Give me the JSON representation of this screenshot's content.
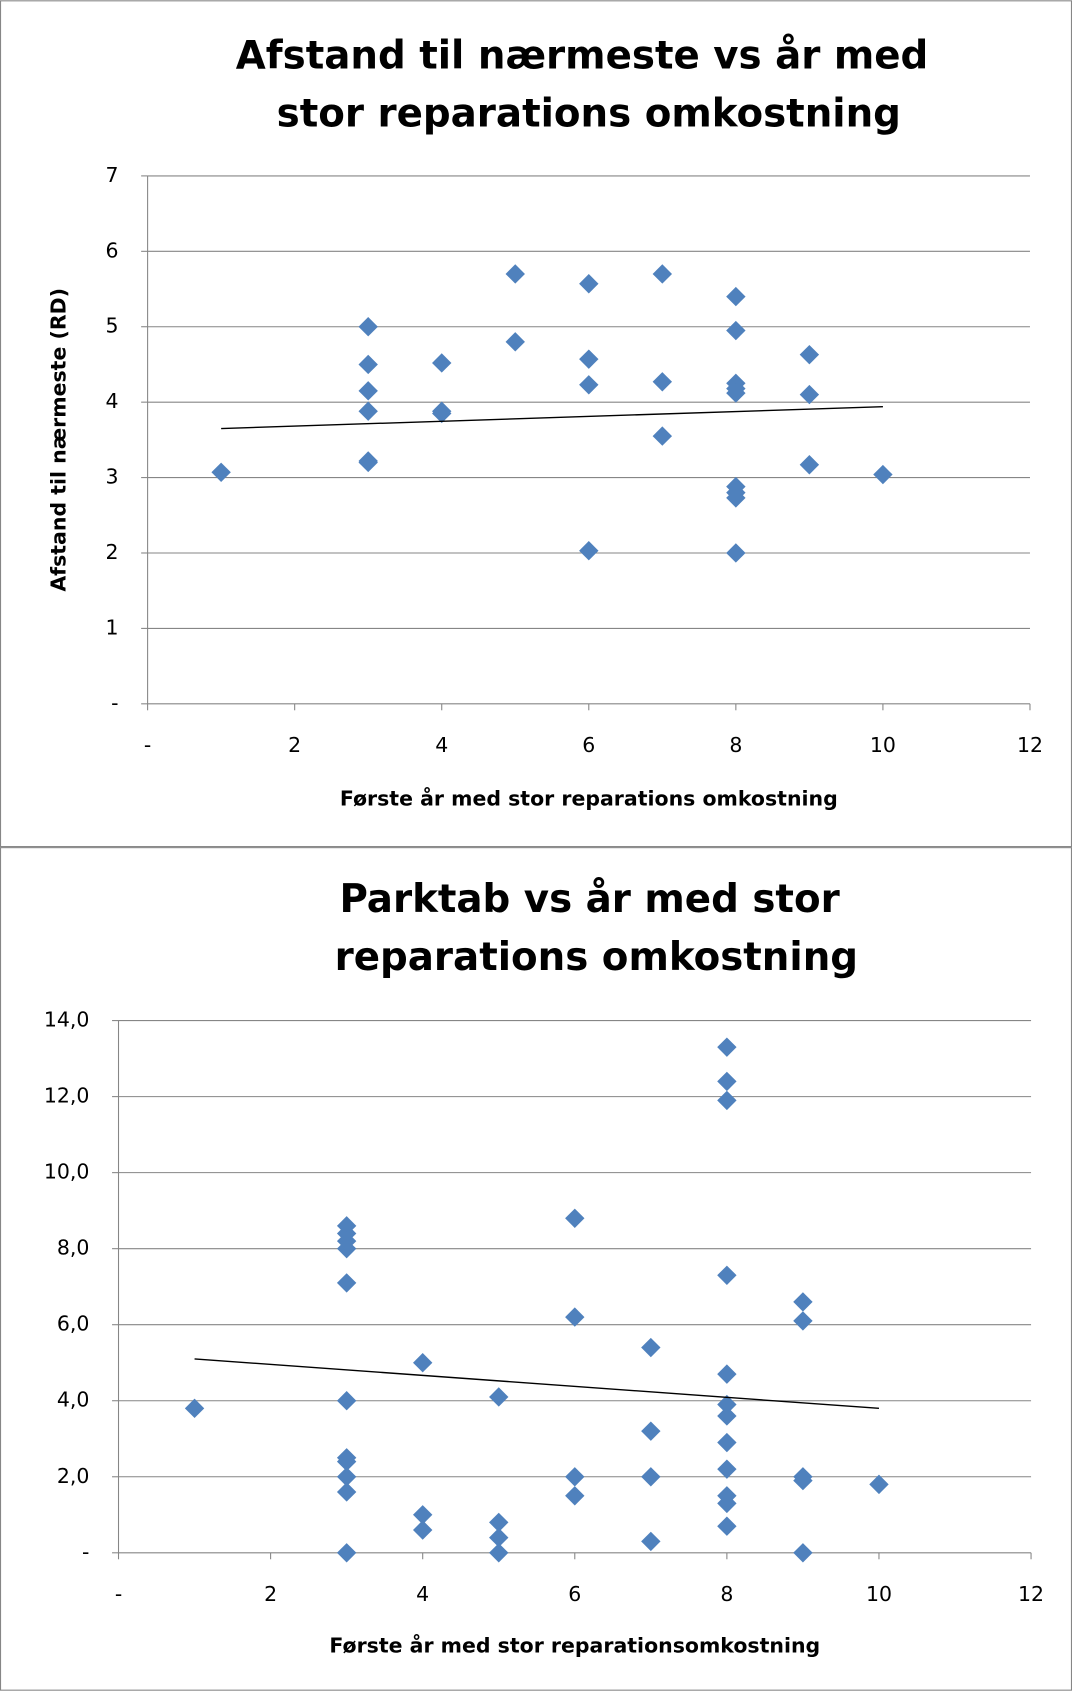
{
  "chart_data": [
    {
      "type": "scatter",
      "title": "Afstand til nærmeste vs år med stor reparations omkostning",
      "x_label": "Første år med stor reparations omkostning",
      "y_label": "Afstand til nærmeste (RD)",
      "xlim": [
        0,
        12
      ],
      "xticks": [
        {
          "value": 0,
          "label": "-"
        },
        2,
        4,
        6,
        8,
        10,
        12
      ],
      "ylim": [
        0,
        7
      ],
      "yticks": [
        {
          "value": 0,
          "label": "-"
        },
        1,
        2,
        3,
        4,
        5,
        6,
        7
      ],
      "grid": true,
      "series": [
        {
          "color": "#4f81bd",
          "x": [
            1,
            3,
            3,
            3,
            3,
            3,
            3,
            4,
            4,
            4,
            5,
            5,
            6,
            6,
            6,
            6,
            7,
            7,
            7,
            8,
            8,
            8,
            8,
            8,
            8,
            8,
            8,
            8,
            9,
            9,
            9,
            10
          ],
          "y": [
            3.07,
            5.0,
            4.5,
            4.15,
            3.88,
            3.22,
            3.2,
            4.52,
            3.88,
            3.85,
            5.7,
            4.8,
            5.57,
            4.57,
            4.23,
            2.03,
            5.7,
            4.27,
            3.55,
            5.4,
            4.95,
            4.25,
            4.18,
            4.12,
            2.88,
            2.8,
            2.73,
            2.0,
            4.63,
            4.1,
            3.17,
            3.04
          ]
        }
      ],
      "trendline": {
        "x": [
          1,
          10
        ],
        "y": [
          3.65,
          3.94
        ]
      }
    },
    {
      "type": "scatter",
      "title": "Parktab vs år med stor reparations omkostning",
      "x_label": "Første år med stor reparationsomkostning",
      "xlim": [
        0,
        12
      ],
      "xticks": [
        {
          "value": 0,
          "label": "-"
        },
        2,
        4,
        6,
        8,
        10,
        12
      ],
      "ylim": [
        0,
        14
      ],
      "yticks": [
        {
          "value": 0,
          "label": "-"
        },
        {
          "value": 2,
          "label": "2,0"
        },
        {
          "value": 4,
          "label": "4,0"
        },
        {
          "value": 6,
          "label": "6,0"
        },
        {
          "value": 8,
          "label": "8,0"
        },
        {
          "value": 10,
          "label": "10,0"
        },
        {
          "value": 12,
          "label": "12,0"
        },
        {
          "value": 14,
          "label": "14,0"
        }
      ],
      "grid": true,
      "series": [
        {
          "color": "#4f81bd",
          "x": [
            1,
            3,
            3,
            3,
            3,
            3,
            3,
            3,
            3,
            3,
            3,
            3,
            4,
            4,
            4,
            5,
            5,
            5,
            5,
            6,
            6,
            6,
            6,
            7,
            7,
            7,
            7,
            8,
            8,
            8,
            8,
            8,
            8,
            8,
            8,
            8,
            8,
            8,
            8,
            9,
            9,
            9,
            9,
            9,
            10
          ],
          "y": [
            3.8,
            8.6,
            8.4,
            8.2,
            8.0,
            7.1,
            4.0,
            2.5,
            2.4,
            2.0,
            1.6,
            0.0,
            5.0,
            1.0,
            0.6,
            4.1,
            0.8,
            0.4,
            0.0,
            8.8,
            6.2,
            2.0,
            1.5,
            5.4,
            3.2,
            2.0,
            0.3,
            13.3,
            12.4,
            11.9,
            7.3,
            4.7,
            3.9,
            3.6,
            2.9,
            2.2,
            1.5,
            1.3,
            0.7,
            6.6,
            6.1,
            2.0,
            1.9,
            0.0,
            1.8
          ]
        }
      ],
      "trendline": {
        "x": [
          1,
          10
        ],
        "y": [
          5.1,
          3.8
        ]
      }
    }
  ]
}
